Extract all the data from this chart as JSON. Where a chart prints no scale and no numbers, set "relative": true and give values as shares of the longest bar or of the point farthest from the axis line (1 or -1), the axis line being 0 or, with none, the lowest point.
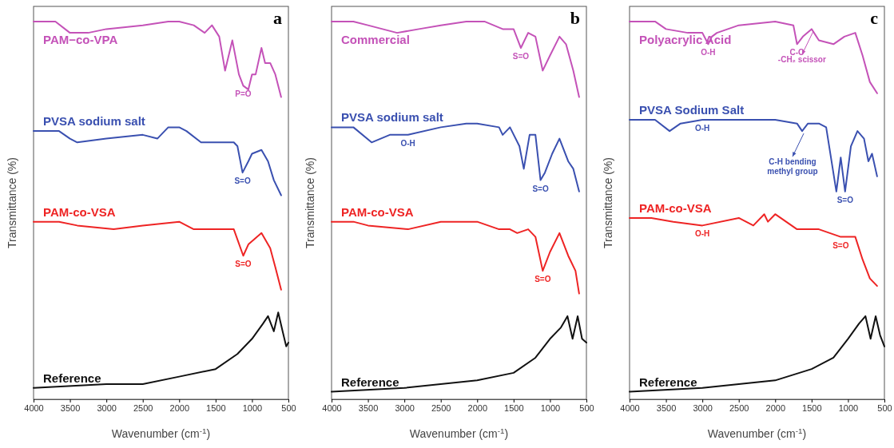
{
  "chart_data": [
    {
      "type": "line",
      "title": "a",
      "xlabel": "Wavenumber (cm$^{-1}$)",
      "ylabel": "Transmittance (%)",
      "relative": true,
      "tick_labels": "x",
      "xlim": [
        4000,
        500
      ],
      "xticks": [
        4000,
        3500,
        3000,
        2500,
        2000,
        1500,
        1000,
        500
      ],
      "grid": false,
      "series": [
        {
          "name": "PAM−co-VPA",
          "color": "#c452b8",
          "x": [
            4000,
            3700,
            3500,
            3250,
            3000,
            2500,
            2150,
            2000,
            1800,
            1650,
            1550,
            1450,
            1370,
            1270,
            1180,
            1120,
            1050,
            1000,
            950,
            870,
            820,
            750,
            680,
            600
          ],
          "values": [
            1.0,
            1.0,
            0.97,
            0.97,
            0.98,
            0.99,
            1.0,
            1.0,
            0.99,
            0.97,
            0.99,
            0.96,
            0.87,
            0.95,
            0.86,
            0.83,
            0.82,
            0.86,
            0.86,
            0.93,
            0.89,
            0.89,
            0.86,
            0.8
          ]
        },
        {
          "name": "PVSA sodium salt",
          "color": "#3a50b0",
          "x": [
            4000,
            3650,
            3500,
            3400,
            3000,
            2500,
            2300,
            2150,
            2000,
            1900,
            1700,
            1600,
            1250,
            1200,
            1130,
            1050,
            1000,
            870,
            780,
            700,
            600
          ],
          "values": [
            0.71,
            0.71,
            0.69,
            0.68,
            0.69,
            0.7,
            0.69,
            0.72,
            0.72,
            0.71,
            0.68,
            0.68,
            0.68,
            0.67,
            0.6,
            0.63,
            0.65,
            0.66,
            0.63,
            0.58,
            0.54
          ]
        },
        {
          "name": "PAM-co-VSA",
          "color": "#ee2424",
          "x": [
            4000,
            3650,
            3400,
            2900,
            2500,
            2000,
            1800,
            1600,
            1250,
            1120,
            1050,
            870,
            750,
            680,
            600
          ],
          "values": [
            0.47,
            0.47,
            0.46,
            0.45,
            0.46,
            0.47,
            0.45,
            0.45,
            0.45,
            0.38,
            0.41,
            0.44,
            0.4,
            0.35,
            0.29
          ]
        },
        {
          "name": "Reference",
          "color": "#111111",
          "x": [
            4000,
            3000,
            2500,
            2000,
            1500,
            1200,
            1000,
            850,
            780,
            700,
            640,
            580,
            530,
            500
          ],
          "values": [
            0.03,
            0.04,
            0.04,
            0.06,
            0.08,
            0.12,
            0.16,
            0.2,
            0.22,
            0.18,
            0.23,
            0.18,
            0.14,
            0.15
          ]
        }
      ],
      "annotations": [
        {
          "text": "P=O",
          "x": 1120,
          "y": 0.83
        },
        {
          "text": "S=O",
          "x": 1130,
          "y": 0.6
        },
        {
          "text": "S=O",
          "x": 1120,
          "y": 0.38
        }
      ]
    },
    {
      "type": "line",
      "title": "b",
      "xlabel": "Wavenumber (cm$^{-1}$)",
      "ylabel": "Transmittance (%)",
      "relative": true,
      "tick_labels": "x",
      "xlim": [
        4000,
        500
      ],
      "xticks": [
        4000,
        3500,
        3000,
        2500,
        2000,
        1500,
        1000,
        500
      ],
      "grid": false,
      "series": [
        {
          "name": "Commercial",
          "color": "#c452b8",
          "x": [
            4000,
            3700,
            3500,
            3100,
            2800,
            2500,
            2150,
            1900,
            1650,
            1500,
            1400,
            1300,
            1200,
            1100,
            1000,
            870,
            780,
            680,
            600
          ],
          "values": [
            1.0,
            1.0,
            0.99,
            0.97,
            0.98,
            0.99,
            1.0,
            1.0,
            0.98,
            0.98,
            0.93,
            0.97,
            0.96,
            0.87,
            0.91,
            0.96,
            0.94,
            0.87,
            0.8
          ]
        },
        {
          "name": "PVSA sodium salt",
          "color": "#3a50b0",
          "x": [
            4000,
            3700,
            3450,
            3200,
            2950,
            2500,
            2150,
            2000,
            1700,
            1650,
            1550,
            1420,
            1360,
            1280,
            1200,
            1130,
            1070,
            970,
            870,
            750,
            680,
            600
          ],
          "values": [
            0.72,
            0.72,
            0.68,
            0.7,
            0.7,
            0.72,
            0.73,
            0.73,
            0.72,
            0.7,
            0.72,
            0.67,
            0.61,
            0.7,
            0.7,
            0.58,
            0.6,
            0.65,
            0.69,
            0.63,
            0.61,
            0.55
          ]
        },
        {
          "name": "PAM-co-VSA",
          "color": "#ee2424",
          "x": [
            4000,
            3700,
            3500,
            2950,
            2500,
            2000,
            1700,
            1550,
            1450,
            1300,
            1200,
            1100,
            1000,
            870,
            750,
            650,
            600
          ],
          "values": [
            0.47,
            0.47,
            0.46,
            0.45,
            0.47,
            0.47,
            0.45,
            0.45,
            0.44,
            0.45,
            0.43,
            0.34,
            0.39,
            0.44,
            0.38,
            0.34,
            0.28
          ]
        },
        {
          "name": "Reference",
          "color": "#111111",
          "x": [
            4000,
            3000,
            2000,
            1500,
            1200,
            1000,
            850,
            760,
            690,
            620,
            560,
            500
          ],
          "values": [
            0.02,
            0.03,
            0.05,
            0.07,
            0.11,
            0.16,
            0.19,
            0.22,
            0.16,
            0.22,
            0.16,
            0.15
          ]
        }
      ],
      "annotations": [
        {
          "text": "S=O",
          "x": 1400,
          "y": 0.93
        },
        {
          "text": "O-H",
          "x": 2950,
          "y": 0.7
        },
        {
          "text": "S=O",
          "x": 1130,
          "y": 0.58
        },
        {
          "text": "S=O",
          "x": 1100,
          "y": 0.34
        }
      ]
    },
    {
      "type": "line",
      "title": "c",
      "xlabel": "Wavenumber (cm$^{-1}$)",
      "ylabel": "Transmittance (%)",
      "relative": true,
      "tick_labels": "x",
      "xlim": [
        4000,
        500
      ],
      "xticks": [
        4000,
        3500,
        3000,
        2500,
        2000,
        1500,
        1000,
        500
      ],
      "grid": false,
      "series": [
        {
          "name": "Polyacrylic Acid",
          "color": "#c452b8",
          "x": [
            4000,
            3650,
            3500,
            3200,
            3000,
            2920,
            2870,
            2800,
            2500,
            2000,
            1750,
            1700,
            1620,
            1500,
            1400,
            1200,
            1050,
            900,
            800,
            700,
            600
          ],
          "values": [
            1.0,
            1.0,
            0.98,
            0.97,
            0.97,
            0.94,
            0.96,
            0.97,
            0.99,
            1.0,
            0.99,
            0.94,
            0.96,
            0.98,
            0.95,
            0.94,
            0.96,
            0.97,
            0.91,
            0.84,
            0.81
          ]
        },
        {
          "name": "PVSA Sodium Salt",
          "color": "#3a50b0",
          "x": [
            4000,
            3650,
            3450,
            3300,
            3000,
            2500,
            2000,
            1700,
            1630,
            1550,
            1400,
            1300,
            1160,
            1100,
            1040,
            960,
            870,
            780,
            720,
            670,
            600
          ],
          "values": [
            0.74,
            0.74,
            0.71,
            0.73,
            0.74,
            0.74,
            0.74,
            0.73,
            0.71,
            0.73,
            0.73,
            0.72,
            0.55,
            0.64,
            0.55,
            0.67,
            0.71,
            0.69,
            0.63,
            0.65,
            0.59
          ]
        },
        {
          "name": "PAM-co-VSA",
          "color": "#ee2424",
          "x": [
            4000,
            3700,
            3400,
            3000,
            2500,
            2300,
            2150,
            2100,
            2000,
            1700,
            1400,
            1100,
            900,
            800,
            700,
            600
          ],
          "values": [
            0.48,
            0.48,
            0.47,
            0.46,
            0.48,
            0.46,
            0.49,
            0.47,
            0.49,
            0.45,
            0.45,
            0.43,
            0.43,
            0.37,
            0.32,
            0.3
          ]
        },
        {
          "name": "Reference",
          "color": "#111111",
          "x": [
            4000,
            3000,
            2000,
            1500,
            1200,
            1000,
            850,
            760,
            690,
            620,
            560,
            500
          ],
          "values": [
            0.02,
            0.03,
            0.05,
            0.08,
            0.11,
            0.16,
            0.2,
            0.22,
            0.16,
            0.22,
            0.17,
            0.14
          ]
        }
      ],
      "annotations": [
        {
          "text": "O-H",
          "x": 2920,
          "y": 0.94
        },
        {
          "text": "C-O",
          "x": 1700,
          "y": 0.94
        },
        {
          "text": "-CH₂ scissor",
          "x": 1500,
          "y": 0.98
        },
        {
          "text": "O-H",
          "x": 3000,
          "y": 0.74
        },
        {
          "text": "C-H bending\nmethyl group",
          "x": 1630,
          "y": 0.71
        },
        {
          "text": "S=O",
          "x": 1040,
          "y": 0.55
        },
        {
          "text": "O-H",
          "x": 3000,
          "y": 0.46
        },
        {
          "text": "S=O",
          "x": 1100,
          "y": 0.43
        }
      ]
    }
  ]
}
